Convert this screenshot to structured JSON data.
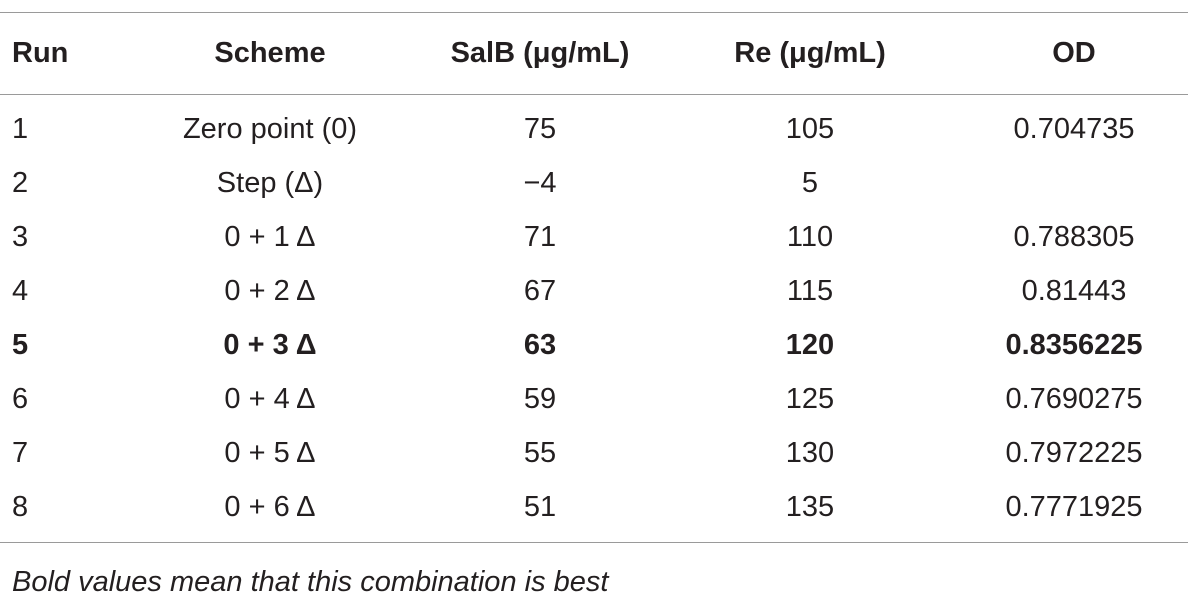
{
  "table": {
    "headers": [
      "Run",
      "Scheme",
      "SalB (μg/mL)",
      "Re (μg/mL)",
      "OD"
    ],
    "rows": [
      {
        "run": "1",
        "scheme": "Zero point (0)",
        "salb": "75",
        "re": "105",
        "od": "0.704735",
        "bold": false
      },
      {
        "run": "2",
        "scheme": "Step (Δ)",
        "salb": "−4",
        "re": "5",
        "od": "",
        "bold": false
      },
      {
        "run": "3",
        "scheme": "0 + 1 Δ",
        "salb": "71",
        "re": "110",
        "od": "0.788305",
        "bold": false
      },
      {
        "run": "4",
        "scheme": "0 + 2 Δ",
        "salb": "67",
        "re": "115",
        "od": "0.81443",
        "bold": false
      },
      {
        "run": "5",
        "scheme": "0 + 3  Δ",
        "salb": "63",
        "re": "120",
        "od": "0.8356225",
        "bold": true
      },
      {
        "run": "6",
        "scheme": "0 + 4 Δ",
        "salb": "59",
        "re": "125",
        "od": "0.7690275",
        "bold": false
      },
      {
        "run": "7",
        "scheme": "0 + 5 Δ",
        "salb": "55",
        "re": "130",
        "od": "0.7972225",
        "bold": false
      },
      {
        "run": "8",
        "scheme": "0 + 6 Δ",
        "salb": "51",
        "re": "135",
        "od": "0.7771925",
        "bold": false
      }
    ]
  },
  "footnote": "Bold values mean that this combination is best"
}
